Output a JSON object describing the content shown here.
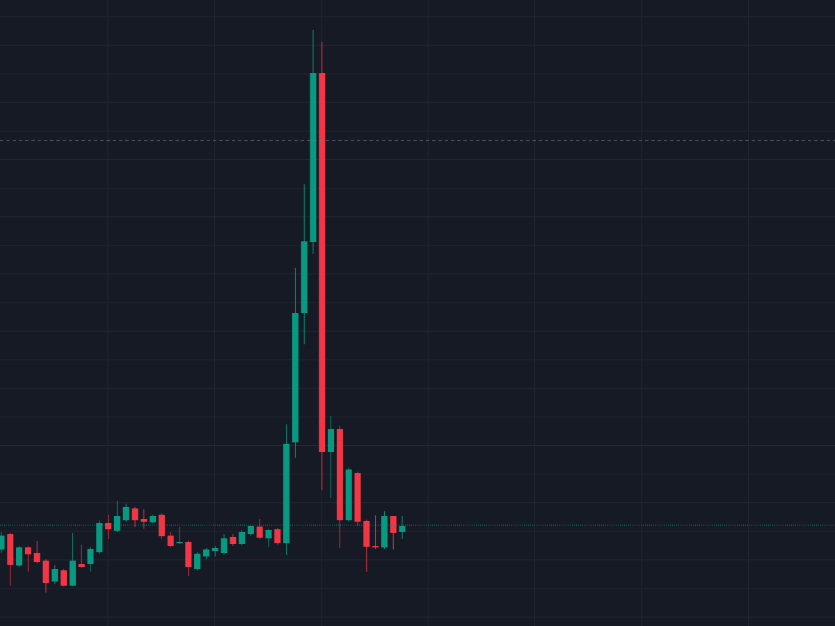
{
  "chart_data": {
    "type": "candlestick",
    "open": [
      110,
      132,
      87,
      113,
      105,
      94,
      64,
      80,
      58,
      89,
      89,
      106,
      148,
      137,
      152,
      169,
      154,
      149,
      160,
      130,
      119,
      121,
      82,
      100,
      108,
      105,
      128,
      118,
      132,
      143,
      126,
      139,
      119,
      264,
      450,
      552,
      795,
      250,
      283,
      152,
      220,
      151,
      115,
      113,
      158,
      135
    ],
    "high": [
      135,
      134,
      115,
      115,
      122,
      96,
      88,
      82,
      134,
      117,
      114,
      152,
      160,
      180,
      176,
      171,
      168,
      160,
      162,
      135,
      142,
      123,
      106,
      112,
      115,
      132,
      132,
      138,
      145,
      154,
      140,
      141,
      290,
      515,
      635,
      857,
      840,
      302,
      288,
      228,
      222,
      153,
      159,
      165,
      158,
      158
    ],
    "low": [
      105,
      58,
      85,
      78,
      90,
      48,
      60,
      57,
      57,
      84,
      78,
      104,
      125,
      135,
      150,
      142,
      140,
      148,
      125,
      113,
      118,
      72,
      80,
      96,
      100,
      103,
      115,
      116,
      130,
      125,
      114,
      117,
      102,
      242,
      405,
      535,
      195,
      184,
      112,
      150,
      144,
      78,
      111,
      111,
      110,
      125
    ],
    "close": [
      130,
      88,
      113,
      103,
      92,
      62,
      82,
      58,
      94,
      85,
      111,
      148,
      139,
      158,
      171,
      152,
      150,
      158,
      129,
      115,
      121,
      85,
      104,
      110,
      112,
      126,
      118,
      135,
      144,
      127,
      138,
      119,
      262,
      450,
      553,
      795,
      250,
      283,
      152,
      225,
      150,
      114,
      113,
      158,
      134,
      144
    ],
    "up_color": "#089981",
    "down_color": "#f23645",
    "ylim": [
      0,
      900
    ],
    "grid": true,
    "hlines": [
      {
        "value": 698,
        "color": "#787b86",
        "style": "dashed"
      },
      {
        "value": 145,
        "color": "#089981",
        "style": "dotted"
      }
    ]
  }
}
